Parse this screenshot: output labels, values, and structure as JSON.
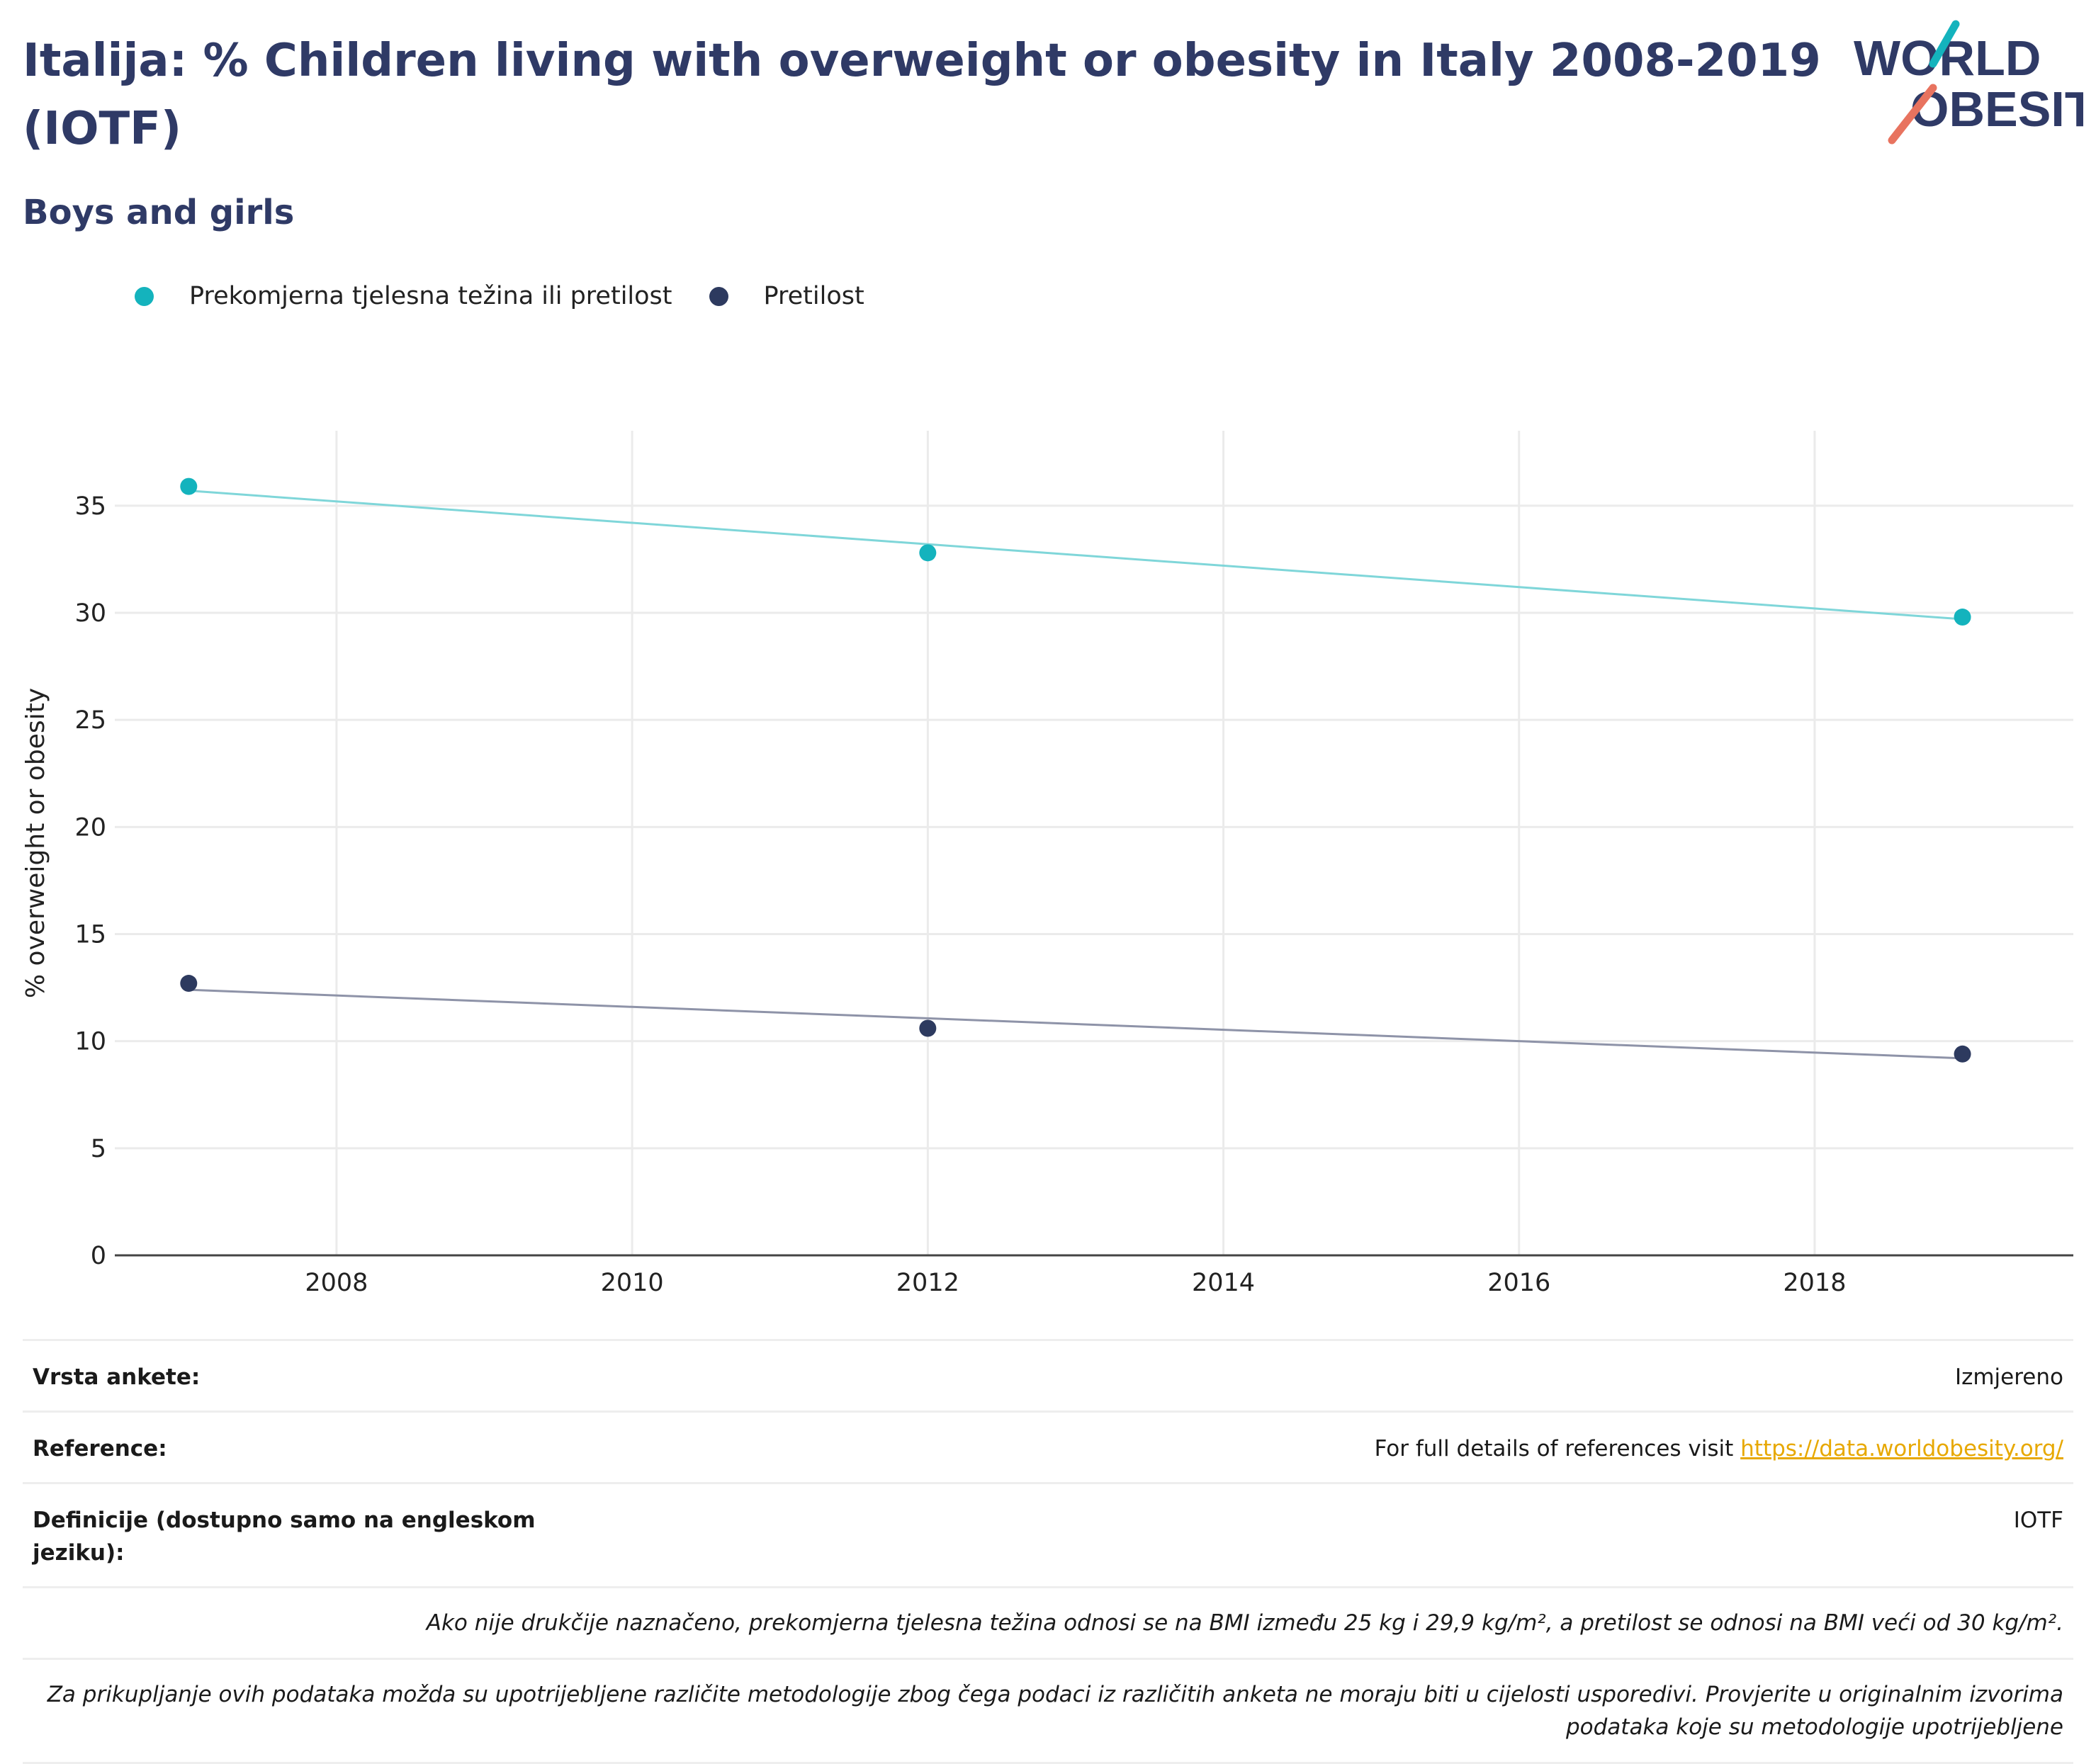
{
  "header": {
    "title": "Italija: % Children living with overweight or obesity in Italy 2008-2019 (IOTF)",
    "subtitle": "Boys and girls",
    "logo_line1": "WORLD",
    "logo_line2": "OBESITY"
  },
  "colors": {
    "overweight": "#14b3bd",
    "obesity": "#2d3a5f",
    "overweight_trend": "#7fd6d9",
    "obesity_trend": "#8e93a8",
    "title": "#2f3a66",
    "link": "#e7a800"
  },
  "chart_data": {
    "type": "scatter",
    "ylabel": "% overweight or obesity",
    "xlabel": "",
    "xlim": [
      2006.5,
      2019.75
    ],
    "ylim": [
      0,
      38.5
    ],
    "x_ticks": [
      2008,
      2010,
      2012,
      2014,
      2016,
      2018
    ],
    "y_ticks": [
      0,
      5,
      10,
      15,
      20,
      25,
      30,
      35
    ],
    "grid": true,
    "legend_position": "top-left",
    "series": [
      {
        "name": "Prekomjerna tjelesna težina ili pretilost",
        "x": [
          2007,
          2012,
          2019
        ],
        "y": [
          35.9,
          32.8,
          29.8
        ],
        "trend": [
          [
            2007,
            35.7
          ],
          [
            2019,
            29.7
          ]
        ]
      },
      {
        "name": "Pretilost",
        "x": [
          2007,
          2012,
          2019
        ],
        "y": [
          12.7,
          10.6,
          9.4
        ],
        "trend": [
          [
            2007,
            12.4
          ],
          [
            2019,
            9.2
          ]
        ]
      }
    ]
  },
  "metadata": {
    "survey_label": "Vrsta ankete:",
    "survey_value": "Izmjereno",
    "references_label": "Reference:",
    "references_text": "For full details of references visit ",
    "references_link": "https://data.worldobesity.org/",
    "definitions_label": "Definicije (dostupno samo na engleskom jeziku):",
    "definitions_value": "IOTF",
    "note_bmi": "Ako nije drukčije naznačeno, prekomjerna tjelesna težina odnosi se na BMI između 25 kg i 29,9 kg/m², a pretilost se odnosi na BMI veći od 30 kg/m².",
    "note_methodology": "Za prikupljanje ovih podataka možda su upotrijebljene različite metodologije zbog čega podaci iz različitih anketa ne moraju biti u cijelosti usporedivi. Provjerite u originalnim izvorima podataka koje su metodologije upotrijebljene"
  }
}
